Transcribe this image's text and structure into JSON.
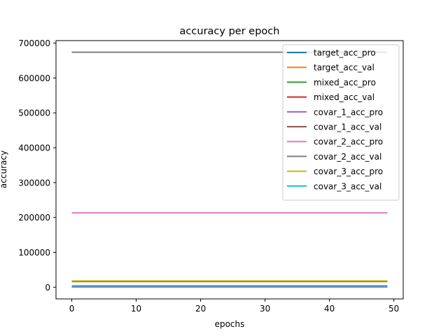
{
  "chart_data": {
    "type": "line",
    "title": "accuracy per epoch",
    "xlabel": "epochs",
    "ylabel": "accuracy",
    "xlim": [
      -2.45,
      51.45
    ],
    "ylim": [
      -33600,
      707300
    ],
    "xticks": [
      0,
      10,
      20,
      30,
      40,
      50
    ],
    "yticks": [
      0,
      100000,
      200000,
      300000,
      400000,
      500000,
      600000,
      700000
    ],
    "grid": false,
    "legend_position": "top-right",
    "x": [
      0,
      49
    ],
    "series": [
      {
        "name": "target_acc_pro",
        "color": "#1f77b4",
        "values": [
          1000,
          1000
        ]
      },
      {
        "name": "target_acc_val",
        "color": "#ff7f0e",
        "values": [
          16000,
          16000
        ]
      },
      {
        "name": "mixed_acc_pro",
        "color": "#2ca02c",
        "values": [
          1200,
          1200
        ]
      },
      {
        "name": "mixed_acc_val",
        "color": "#d62728",
        "values": [
          16500,
          16500
        ]
      },
      {
        "name": "covar_1_acc_pro",
        "color": "#9467bd",
        "values": [
          1400,
          1400
        ]
      },
      {
        "name": "covar_1_acc_val",
        "color": "#8c564b",
        "values": [
          17000,
          17000
        ]
      },
      {
        "name": "covar_2_acc_pro",
        "color": "#e377c2",
        "values": [
          213000,
          213000
        ]
      },
      {
        "name": "covar_2_acc_val",
        "color": "#7f7f7f",
        "values": [
          674000,
          674000
        ]
      },
      {
        "name": "covar_3_acc_pro",
        "color": "#bcbd22",
        "values": [
          18000,
          18000
        ]
      },
      {
        "name": "covar_3_acc_val",
        "color": "#17becf",
        "values": [
          4000,
          4000
        ]
      }
    ]
  }
}
